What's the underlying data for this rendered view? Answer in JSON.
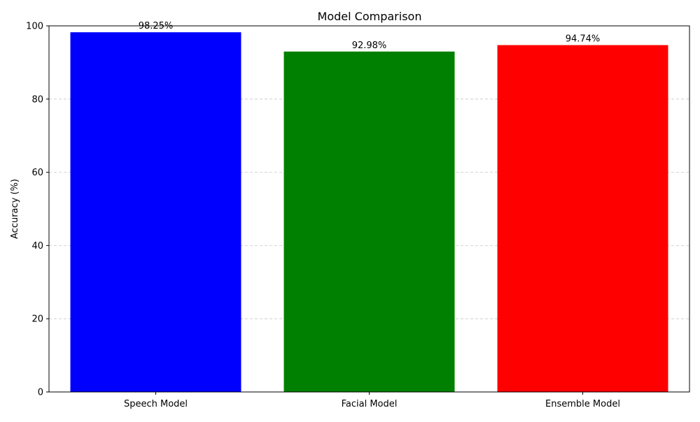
{
  "chart_data": {
    "type": "bar",
    "title": "Model Comparison",
    "xlabel": "",
    "ylabel": "Accuracy (%)",
    "categories": [
      "Speech Model",
      "Facial Model",
      "Ensemble Model"
    ],
    "values": [
      98.25,
      92.98,
      94.74
    ],
    "value_labels": [
      "98.25%",
      "92.98%",
      "94.74%"
    ],
    "colors": [
      "#0000ff",
      "#008000",
      "#ff0000"
    ],
    "ylim": [
      0,
      100
    ],
    "yticks": [
      0,
      20,
      40,
      60,
      80,
      100
    ],
    "grid": "y-axis dashed",
    "legend": "none"
  }
}
